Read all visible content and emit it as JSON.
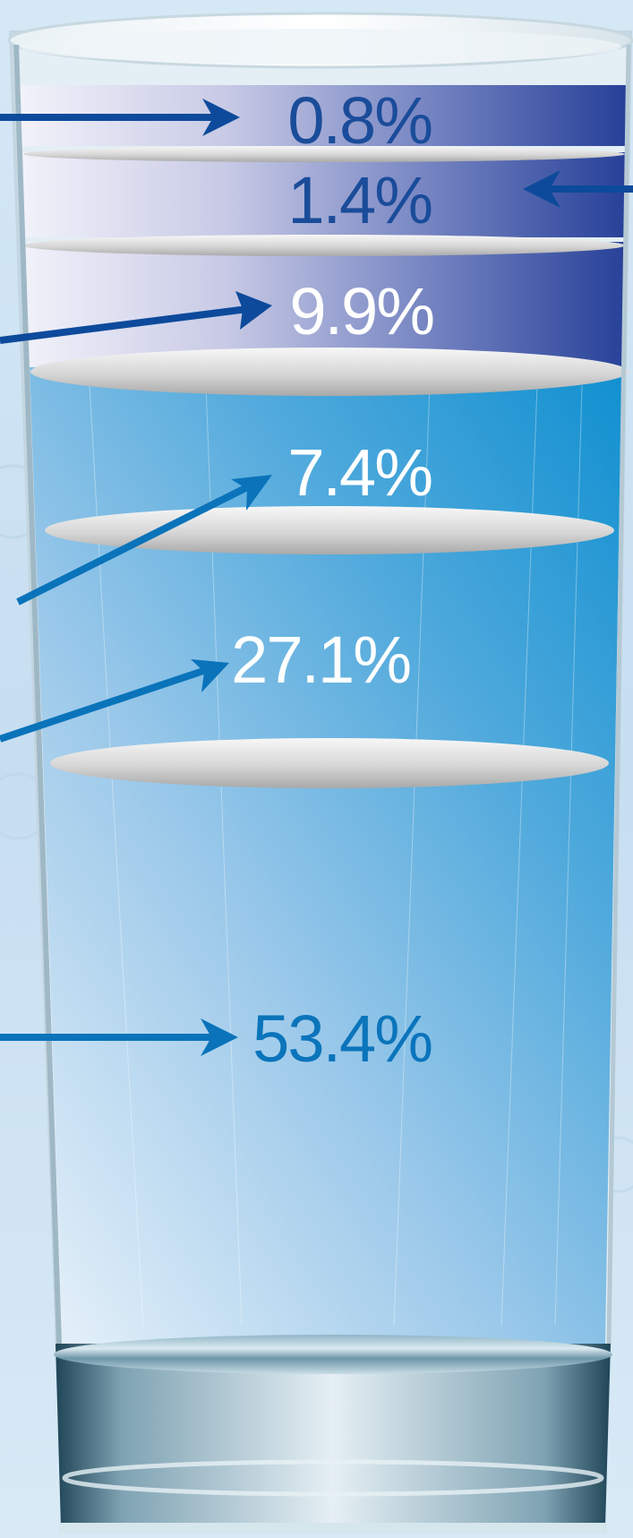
{
  "chart_data": {
    "type": "bar",
    "style": "stacked glass",
    "order": "top-to-bottom",
    "unit": "%",
    "labels": [
      "0.8%",
      "1.4%",
      "9.9%",
      "7.4%",
      "27.1%",
      "53.4%"
    ],
    "values": [
      0.8,
      1.4,
      9.9,
      7.4,
      27.1,
      53.4
    ],
    "colors": {
      "upper_band_dark": "#253f97",
      "upper_band_light": "#f4f4fb",
      "water_top": "#1d8fcc",
      "water_bottom": "#e8f2fa",
      "label_dark_blue": "#1a4c9a",
      "label_white": "#ffffff",
      "label_mid_blue": "#0b74bb",
      "arrow_dark_blue": "#0d4a9c",
      "arrow_mid_blue": "#0a73ba",
      "background": "#cfe3f3"
    }
  }
}
